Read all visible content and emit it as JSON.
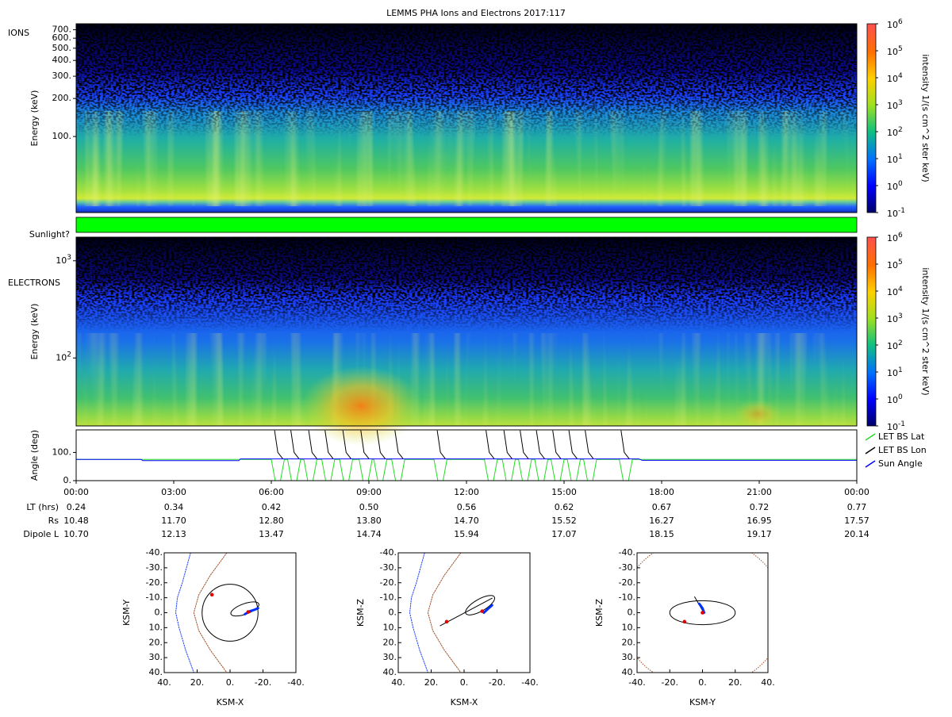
{
  "chart_data": [
    {
      "type": "spectrogram",
      "title": "LEMMS PHA Ions and Electrons  2017:117",
      "label": "IONS",
      "y_label": "Energy (keV)",
      "log_y": true,
      "ylim": [
        25,
        780
      ],
      "yticks": [
        {
          "value": 100,
          "label": "100."
        },
        {
          "value": 200,
          "label": "200."
        },
        {
          "value": 300,
          "label": "300."
        },
        {
          "value": 400,
          "label": "400."
        },
        {
          "value": 500,
          "label": "500."
        },
        {
          "value": 600,
          "label": "600."
        },
        {
          "value": 700,
          "label": "700."
        }
      ],
      "colorbar": {
        "label": "intensity 1/(s cm^2 ster keV)",
        "clim": [
          0.1,
          1000000
        ],
        "ticks": [
          {
            "value": 0.1,
            "label": "10",
            "exponent": "-1"
          },
          {
            "value": 1,
            "label": "10",
            "exponent": "0"
          },
          {
            "value": 10,
            "label": "10",
            "exponent": "1"
          },
          {
            "value": 100,
            "label": "10",
            "exponent": "2"
          },
          {
            "value": 1000,
            "label": "10",
            "exponent": "3"
          },
          {
            "value": 10000,
            "label": "10",
            "exponent": "4"
          },
          {
            "value": 100000,
            "label": "10",
            "exponent": "5"
          },
          {
            "value": 1000000,
            "label": "10",
            "exponent": "6"
          }
        ]
      }
    },
    {
      "type": "flag",
      "label": "Sunlight?",
      "color": "#00ff00"
    },
    {
      "type": "spectrogram",
      "label": "ELECTRONS",
      "y_label": "Energy (keV)",
      "log_y": true,
      "ylim": [
        20,
        1750
      ],
      "yticks": [
        {
          "value": 100,
          "label": "10",
          "exponent": "2"
        },
        {
          "value": 1000,
          "label": "10",
          "exponent": "3"
        }
      ],
      "colorbar": {
        "label": "intensity 1/(s cm^2 ster keV)",
        "clim": [
          0.1,
          1000000
        ],
        "ticks": [
          {
            "value": 0.1,
            "label": "10",
            "exponent": "-1"
          },
          {
            "value": 1,
            "label": "10",
            "exponent": "0"
          },
          {
            "value": 10,
            "label": "10",
            "exponent": "1"
          },
          {
            "value": 100,
            "label": "10",
            "exponent": "2"
          },
          {
            "value": 1000,
            "label": "10",
            "exponent": "3"
          },
          {
            "value": 10000,
            "label": "10",
            "exponent": "4"
          },
          {
            "value": 100000,
            "label": "10",
            "exponent": "5"
          },
          {
            "value": 1000000,
            "label": "10",
            "exponent": "6"
          }
        ]
      }
    },
    {
      "type": "line",
      "y_label": "Angle (deg)",
      "xlim": [
        0,
        24
      ],
      "ylim": [
        0,
        180
      ],
      "yticks": [
        {
          "value": 0,
          "label": "0."
        },
        {
          "value": 100,
          "label": "100."
        }
      ],
      "xticks": [
        {
          "value": 0,
          "label": "00:00"
        },
        {
          "value": 3,
          "label": "03:00"
        },
        {
          "value": 6,
          "label": "06:00"
        },
        {
          "value": 9,
          "label": "09:00"
        },
        {
          "value": 12,
          "label": "12:00"
        },
        {
          "value": 15,
          "label": "15:00"
        },
        {
          "value": 18,
          "label": "18:00"
        },
        {
          "value": 21,
          "label": "21:00"
        },
        {
          "value": 24,
          "label": "00:00"
        }
      ],
      "series": [
        {
          "name": "LET BS Lat",
          "color": "#22dd22",
          "x": [
            0,
            6.0,
            6.12,
            6.28,
            6.4,
            6.5,
            6.62,
            6.78,
            6.9,
            7.0,
            7.12,
            7.28,
            7.4,
            7.55,
            7.67,
            7.83,
            7.95,
            8.1,
            8.22,
            8.38,
            8.5,
            8.7,
            8.82,
            8.98,
            9.1,
            9.15,
            9.27,
            9.43,
            9.55,
            9.7,
            9.82,
            9.98,
            10.1,
            11.0,
            11.12,
            11.28,
            11.4,
            12.55,
            12.67,
            12.83,
            12.95,
            13.1,
            13.22,
            13.38,
            13.5,
            13.6,
            13.72,
            13.88,
            14.0,
            14.1,
            14.22,
            14.38,
            14.5,
            14.6,
            14.72,
            14.88,
            15.0,
            15.1,
            15.22,
            15.38,
            15.5,
            15.6,
            15.72,
            15.88,
            16.0,
            16.7,
            16.82,
            16.98,
            17.1,
            24
          ],
          "values": [
            75,
            75,
            0,
            0,
            75,
            75,
            0,
            0,
            75,
            75,
            0,
            0,
            75,
            75,
            0,
            0,
            75,
            75,
            0,
            0,
            75,
            75,
            0,
            0,
            75,
            75,
            0,
            0,
            75,
            75,
            0,
            0,
            75,
            75,
            0,
            0,
            75,
            75,
            0,
            0,
            75,
            75,
            0,
            0,
            75,
            75,
            0,
            0,
            75,
            75,
            0,
            0,
            75,
            75,
            0,
            0,
            75,
            75,
            0,
            0,
            75,
            75,
            0,
            0,
            75,
            75,
            0,
            0,
            75,
            75
          ]
        },
        {
          "name": "LET BS Lon",
          "color": "#000000",
          "x": [
            6.1,
            6.2,
            6.35,
            null,
            6.6,
            6.7,
            6.85,
            null,
            7.15,
            7.25,
            7.4,
            null,
            7.65,
            7.75,
            7.9,
            null,
            8.2,
            8.3,
            8.45,
            null,
            8.75,
            8.85,
            9.0,
            null,
            9.25,
            9.35,
            9.5,
            null,
            9.8,
            9.9,
            10.05,
            null,
            11.1,
            11.2,
            11.35,
            null,
            12.6,
            12.7,
            12.85,
            null,
            13.15,
            13.25,
            13.4,
            null,
            13.65,
            13.75,
            13.9,
            null,
            14.15,
            14.25,
            14.4,
            null,
            14.65,
            14.75,
            14.9,
            null,
            15.15,
            15.25,
            15.4,
            null,
            15.65,
            15.75,
            15.9,
            null,
            16.75,
            16.85,
            17.0
          ],
          "values": [
            178,
            100,
            78,
            null,
            178,
            100,
            78,
            null,
            178,
            100,
            78,
            null,
            178,
            100,
            78,
            null,
            178,
            100,
            78,
            null,
            178,
            100,
            78,
            null,
            178,
            100,
            78,
            null,
            178,
            100,
            78,
            null,
            178,
            100,
            78,
            null,
            178,
            100,
            78,
            null,
            178,
            100,
            78,
            null,
            178,
            100,
            78,
            null,
            178,
            100,
            78,
            null,
            178,
            100,
            78,
            null,
            178,
            100,
            78,
            null,
            178,
            100,
            78,
            null,
            178,
            100,
            78
          ]
        },
        {
          "name": "Sun Angle",
          "color": "#0000ff",
          "x": [
            0,
            2,
            2.05,
            5,
            5.05,
            17.3,
            17.4,
            24
          ],
          "values": [
            75,
            75,
            71,
            71,
            77,
            77,
            72,
            72
          ]
        }
      ],
      "rows": [
        {
          "label": "LT (hrs)",
          "values": [
            "0.24",
            "0.34",
            "0.42",
            "0.50",
            "0.56",
            "0.62",
            "0.67",
            "0.72",
            "0.77"
          ]
        },
        {
          "label": "Rs",
          "values": [
            "10.48",
            "11.70",
            "12.80",
            "13.80",
            "14.70",
            "15.52",
            "16.27",
            "16.95",
            "17.57"
          ]
        },
        {
          "label": "Dipole L",
          "values": [
            "10.70",
            "12.13",
            "13.47",
            "14.74",
            "15.94",
            "17.07",
            "18.15",
            "19.17",
            "20.14"
          ]
        }
      ]
    },
    {
      "type": "orbit",
      "x_label": "KSM-X",
      "y_label": "KSM-Y",
      "xlim": [
        40,
        -40
      ],
      "ylim": [
        40,
        -40
      ],
      "xticks": [
        {
          "value": 40,
          "label": "40."
        },
        {
          "value": 20,
          "label": "20."
        },
        {
          "value": 0,
          "label": "0."
        },
        {
          "value": -20,
          "label": "-20."
        },
        {
          "value": -40,
          "label": "-40."
        }
      ],
      "yticks": [
        {
          "value": -40,
          "label": "-40."
        },
        {
          "value": -30,
          "label": "-30."
        },
        {
          "value": -20,
          "label": "-20."
        },
        {
          "value": -10,
          "label": "-10."
        },
        {
          "value": 0,
          "label": "0."
        },
        {
          "value": 10,
          "label": "10."
        },
        {
          "value": 20,
          "label": "20."
        },
        {
          "value": 30,
          "label": "30."
        },
        {
          "value": 40,
          "label": "40."
        }
      ],
      "curves": [
        {
          "color": "#2040ff",
          "dashed": true,
          "width": 1,
          "x": [
            24,
            29,
            32,
            33,
            31,
            27,
            22
          ],
          "y": [
            -40,
            -20,
            -10,
            0,
            10,
            25,
            40
          ]
        },
        {
          "color": "#a0522d",
          "dashed": true,
          "width": 1,
          "x": [
            2,
            12,
            19,
            22,
            19,
            12,
            2
          ],
          "y": [
            -40,
            -25,
            -12,
            0,
            12,
            25,
            40
          ]
        },
        {
          "color": "#0030ff",
          "dashed": false,
          "width": 3,
          "x": [
            -9,
            -12,
            -15,
            -17
          ],
          "y": [
            1,
            -1,
            -2,
            -3
          ]
        }
      ],
      "ellipses": [
        {
          "color": "#000000",
          "cx": 0,
          "cy": 0,
          "rx": 17,
          "ry": 19,
          "angle": 0
        },
        {
          "color": "#000000",
          "cx": -9,
          "cy": -2.5,
          "rx": 9,
          "ry": 3.5,
          "angle": -20
        }
      ],
      "points": {
        "color": "#e00000",
        "x": [
          11,
          -11
        ],
        "y": [
          -12,
          -0.5
        ]
      }
    },
    {
      "type": "orbit",
      "x_label": "KSM-X",
      "y_label": "KSM-Z",
      "xlim": [
        40,
        -40
      ],
      "ylim": [
        40,
        -40
      ],
      "xticks": [
        {
          "value": 40,
          "label": "40."
        },
        {
          "value": 20,
          "label": "20."
        },
        {
          "value": 0,
          "label": "0."
        },
        {
          "value": -20,
          "label": "-20."
        },
        {
          "value": -40,
          "label": "-40."
        }
      ],
      "yticks": [
        {
          "value": -40,
          "label": "-40."
        },
        {
          "value": -30,
          "label": "-30."
        },
        {
          "value": -20,
          "label": "-20."
        },
        {
          "value": -10,
          "label": "-10."
        },
        {
          "value": 0,
          "label": "0."
        },
        {
          "value": 10,
          "label": "10."
        },
        {
          "value": 20,
          "label": "20."
        },
        {
          "value": 30,
          "label": "30."
        },
        {
          "value": 40,
          "label": "40."
        }
      ],
      "curves": [
        {
          "color": "#2040ff",
          "dashed": true,
          "width": 1,
          "x": [
            24,
            29,
            32,
            33,
            31,
            27,
            22
          ],
          "y": [
            -40,
            -20,
            -10,
            0,
            10,
            25,
            40
          ]
        },
        {
          "color": "#a0522d",
          "dashed": true,
          "width": 1,
          "x": [
            2,
            12,
            19,
            22,
            19,
            12,
            2
          ],
          "y": [
            -40,
            -25,
            -12,
            0,
            12,
            25,
            40
          ]
        },
        {
          "color": "#000000",
          "dashed": false,
          "width": 1,
          "x": [
            14.5,
            -17
          ],
          "y": [
            8.7,
            -9.7
          ]
        },
        {
          "color": "#0030ff",
          "dashed": false,
          "width": 3,
          "x": [
            -12,
            -15,
            -17
          ],
          "y": [
            0,
            -3,
            -5
          ]
        }
      ],
      "ellipses": [
        {
          "color": "#000000",
          "cx": -9.7,
          "cy": -5,
          "rx": 10,
          "ry": 4,
          "angle": -30
        }
      ],
      "points": {
        "color": "#e00000",
        "x": [
          10.6,
          -11
        ],
        "y": [
          6,
          -1
        ]
      }
    },
    {
      "type": "orbit",
      "x_label": "KSM-Y",
      "y_label": "KSM-Z",
      "xlim": [
        -40,
        40
      ],
      "ylim": [
        40,
        -40
      ],
      "xticks": [
        {
          "value": -40,
          "label": "-40."
        },
        {
          "value": -20,
          "label": "-20."
        },
        {
          "value": 0,
          "label": "0."
        },
        {
          "value": 20,
          "label": "20."
        },
        {
          "value": 40,
          "label": "40."
        }
      ],
      "yticks": [
        {
          "value": -40,
          "label": "-40."
        },
        {
          "value": -30,
          "label": "-30."
        },
        {
          "value": -20,
          "label": "-20."
        },
        {
          "value": -10,
          "label": "-10."
        },
        {
          "value": 0,
          "label": "0."
        },
        {
          "value": 10,
          "label": "10."
        },
        {
          "value": 20,
          "label": "20."
        },
        {
          "value": 30,
          "label": "30."
        },
        {
          "value": 40,
          "label": "40."
        }
      ],
      "curves": [
        {
          "color": "#000000",
          "dashed": false,
          "width": 1,
          "x": [
            -4.8,
            1
          ],
          "y": [
            -10.6,
            0.5
          ]
        },
        {
          "color": "#0030ff",
          "dashed": false,
          "width": 3,
          "x": [
            -2,
            0,
            1
          ],
          "y": [
            -6,
            -3,
            0
          ]
        }
      ],
      "ellipses": [
        {
          "color": "#a0522d",
          "dashed": true,
          "cx": 0,
          "cy": 0,
          "rx": 50,
          "ry": 50,
          "angle": 0
        },
        {
          "color": "#000000",
          "cx": 0,
          "cy": 0,
          "rx": 20,
          "ry": 8,
          "angle": 0
        }
      ],
      "points": {
        "color": "#e00000",
        "x": [
          -11,
          0
        ],
        "y": [
          6,
          0
        ]
      }
    }
  ]
}
